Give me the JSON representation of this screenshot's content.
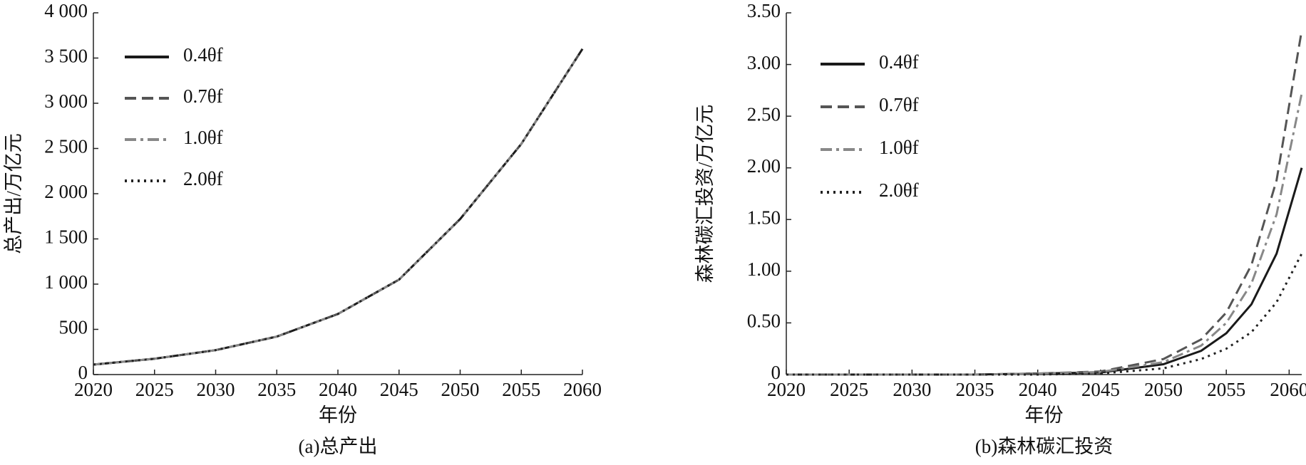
{
  "chart_data": [
    {
      "type": "line",
      "caption": "(a)总产出",
      "xlabel": "年份",
      "ylabel": "总产出/万亿元",
      "x": [
        2020,
        2025,
        2030,
        2035,
        2040,
        2045,
        2050,
        2055,
        2060
      ],
      "xlim": [
        2020,
        2060
      ],
      "xticks": [
        2020,
        2025,
        2030,
        2035,
        2040,
        2045,
        2050,
        2055,
        2060
      ],
      "ylim": [
        0,
        4000
      ],
      "yticks": [
        0,
        500,
        {
          "value": 1000,
          "label": "1 000"
        },
        {
          "value": 1500,
          "label": "1 500"
        },
        {
          "value": 2000,
          "label": "2 000"
        },
        {
          "value": 2500,
          "label": "2 500"
        },
        {
          "value": 3000,
          "label": "3 000"
        },
        {
          "value": 3500,
          "label": "3 500"
        },
        {
          "value": 4000,
          "label": "4 000"
        }
      ],
      "legend": "upper left",
      "series": [
        {
          "name": "0.4θf",
          "color": "#1a1a1a",
          "linestyle": "solid",
          "values": [
            110,
            175,
            270,
            420,
            670,
            1050,
            1720,
            2550,
            3600
          ]
        },
        {
          "name": "0.7θf",
          "color": "#555555",
          "linestyle": "dashed",
          "values": [
            110,
            175,
            270,
            420,
            670,
            1050,
            1720,
            2550,
            3600
          ]
        },
        {
          "name": "1.0θf",
          "color": "#888888",
          "linestyle": "dashdot",
          "values": [
            110,
            175,
            270,
            420,
            670,
            1050,
            1720,
            2550,
            3600
          ]
        },
        {
          "name": "2.0θf",
          "color": "#222222",
          "linestyle": "dotted",
          "values": [
            110,
            175,
            270,
            420,
            670,
            1050,
            1720,
            2550,
            3600
          ]
        }
      ]
    },
    {
      "type": "line",
      "caption": "(b)森林碳汇投资",
      "xlabel": "年份",
      "ylabel": "森林碳汇投资/万亿元",
      "x": [
        2020,
        2025,
        2030,
        2035,
        2040,
        2045,
        2050,
        2053,
        2055,
        2057,
        2059,
        2061
      ],
      "xlim": [
        2020,
        2061
      ],
      "xticks": [
        2020,
        2025,
        2030,
        2035,
        2040,
        2045,
        2050,
        2055,
        2060
      ],
      "ylim": [
        0,
        3.5
      ],
      "yticks": [
        0,
        {
          "value": 0.5,
          "label": "0.50"
        },
        {
          "value": 1.0,
          "label": "1.00"
        },
        {
          "value": 1.5,
          "label": "1.50"
        },
        {
          "value": 2.0,
          "label": "2.00"
        },
        {
          "value": 2.5,
          "label": "2.50"
        },
        {
          "value": 3.0,
          "label": "3.00"
        },
        {
          "value": 3.5,
          "label": "3.50"
        }
      ],
      "legend": "upper left",
      "series": [
        {
          "name": "0.4θf",
          "color": "#1a1a1a",
          "linestyle": "solid",
          "values": [
            0,
            0,
            0,
            0,
            0.01,
            0.02,
            0.1,
            0.23,
            0.4,
            0.68,
            1.17,
            2.0
          ]
        },
        {
          "name": "0.7θf",
          "color": "#555555",
          "linestyle": "dashed",
          "values": [
            0,
            0,
            0,
            0,
            0.01,
            0.03,
            0.15,
            0.34,
            0.6,
            1.06,
            1.88,
            3.33
          ]
        },
        {
          "name": "1.0θf",
          "color": "#888888",
          "linestyle": "dashdot",
          "values": [
            0,
            0,
            0,
            0,
            0.01,
            0.025,
            0.12,
            0.28,
            0.5,
            0.88,
            1.55,
            2.72
          ]
        },
        {
          "name": "2.0θf",
          "color": "#222222",
          "linestyle": "dotted",
          "values": [
            0,
            0,
            0,
            0,
            0,
            0.01,
            0.06,
            0.15,
            0.25,
            0.41,
            0.7,
            1.17
          ]
        }
      ]
    }
  ]
}
